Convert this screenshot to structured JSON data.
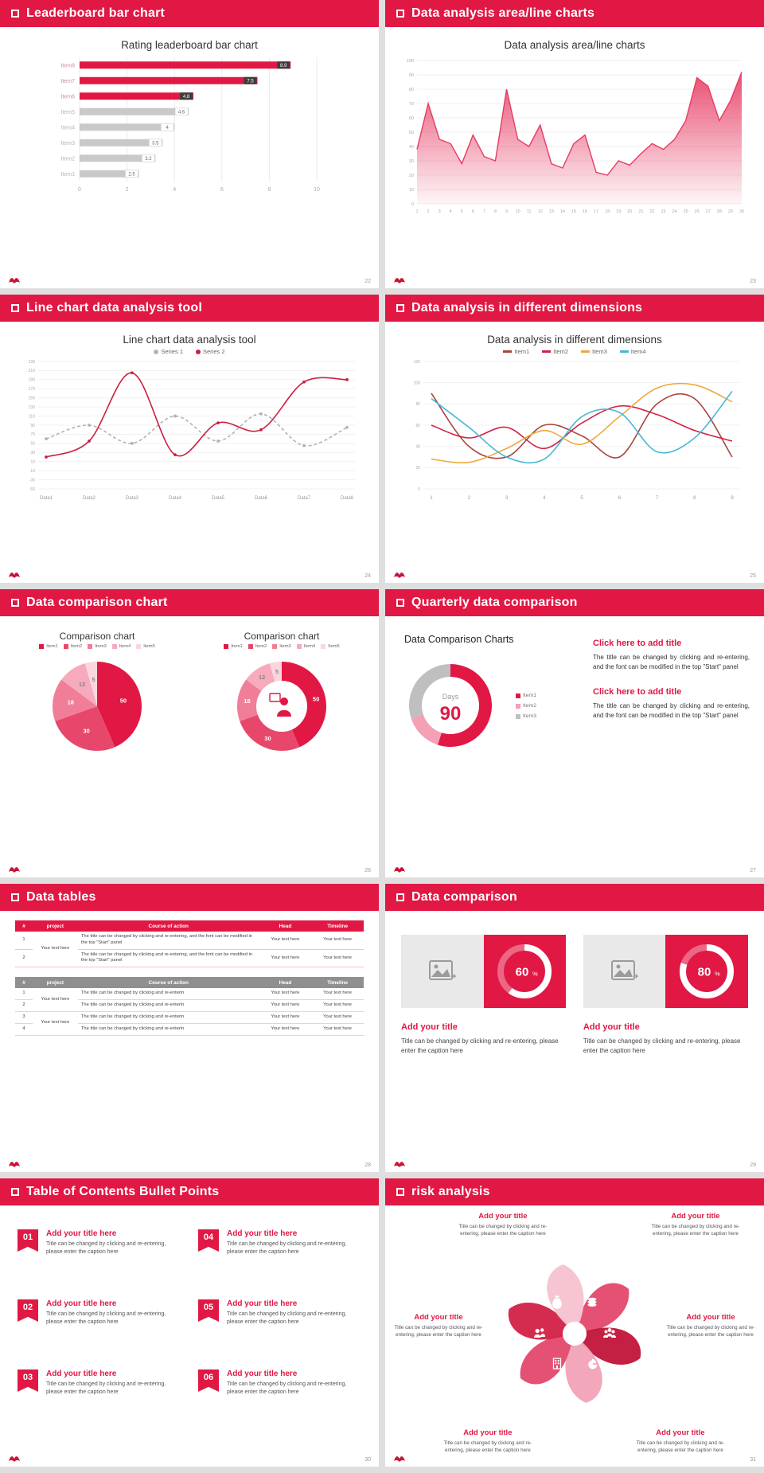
{
  "theme": {
    "accent": "#e11844",
    "accent_dark": "#b5123a",
    "page_bg": "#dfdfdf",
    "slide_bg": "#ffffff",
    "gray_bar": "#c9c9c9",
    "table_gray_header": "#8f8f8f"
  },
  "slides": [
    {
      "header": "Leaderboard bar chart",
      "page": "22",
      "chart": {
        "type": "hbar",
        "title": "Rating leaderboard bar chart",
        "categories": [
          "Item1",
          "Item2",
          "Item3",
          "Item4",
          "Item5",
          "Item6",
          "Item7",
          "Item8"
        ],
        "values": [
          2.5,
          3.2,
          3.5,
          4,
          4.6,
          4.8,
          7.5,
          8.9
        ],
        "highlight_count": 3,
        "xticks": [
          0,
          2,
          4,
          6,
          8,
          10
        ],
        "xlim": [
          0,
          10
        ],
        "bar_color": "#c9c9c9",
        "highlight_color": "#e11844",
        "badge_dark": "#3d3d3d"
      }
    },
    {
      "header": "Data analysis area/line charts",
      "page": "23",
      "chart": {
        "type": "area",
        "title": "Data analysis area/line charts",
        "x_start": 1,
        "values": [
          38,
          70,
          45,
          42,
          28,
          48,
          33,
          30,
          80,
          45,
          40,
          55,
          28,
          25,
          42,
          48,
          22,
          20,
          30,
          27,
          35,
          42,
          38,
          45,
          58,
          88,
          82,
          58,
          72,
          92
        ],
        "ylim": [
          0,
          100
        ],
        "ystep": 10,
        "color": "#e73b63"
      }
    },
    {
      "header": "Line chart data analysis tool",
      "page": "24",
      "chart": {
        "type": "line",
        "title": "Line chart data analysis tool",
        "dots": true,
        "categories": [
          "Data1",
          "Data2",
          "Data3",
          "Data4",
          "Data5",
          "Data6",
          "Data7",
          "Data8"
        ],
        "ylim": [
          -50,
          230
        ],
        "ystep": 20,
        "series": [
          {
            "name": "Series 1",
            "color": "#b3b3b3",
            "dashed": true,
            "values": [
              60,
              90,
              50,
              110,
              55,
              115,
              45,
              85
            ]
          },
          {
            "name": "Series 2",
            "color": "#cc1f41",
            "dashed": false,
            "values": [
              20,
              55,
              205,
              25,
              95,
              80,
              185,
              190
            ]
          }
        ]
      }
    },
    {
      "header": "Data analysis in different dimensions",
      "page": "25",
      "chart": {
        "type": "line",
        "title": "Data analysis in different dimensions",
        "dots": false,
        "categories": [
          "1",
          "2",
          "3",
          "4",
          "5",
          "6",
          "7",
          "8",
          "9"
        ],
        "ylim": [
          0,
          120
        ],
        "ystep": 20,
        "series": [
          {
            "name": "Item1",
            "color": "#a8453e",
            "dashed": false,
            "values": [
              90,
              40,
              30,
              60,
              50,
              30,
              80,
              85,
              30
            ]
          },
          {
            "name": "Item2",
            "color": "#d42045",
            "dashed": false,
            "values": [
              60,
              48,
              58,
              38,
              62,
              78,
              70,
              55,
              45
            ]
          },
          {
            "name": "Item3",
            "color": "#eea83b",
            "dashed": false,
            "values": [
              28,
              25,
              38,
              55,
              42,
              68,
              95,
              98,
              82
            ]
          },
          {
            "name": "Item4",
            "color": "#45b8d6",
            "dashed": false,
            "values": [
              85,
              58,
              30,
              28,
              68,
              72,
              35,
              48,
              92
            ]
          }
        ]
      }
    },
    {
      "header": "Data comparison chart",
      "page": "26",
      "pie": {
        "type": "pie",
        "title": "Comparison chart",
        "labels": [
          "Item1",
          "Item2",
          "Item3",
          "Item4",
          "Item5"
        ],
        "values": [
          50,
          30,
          18,
          12,
          5
        ],
        "colors": [
          "#e11844",
          "#e8476c",
          "#f07e98",
          "#f6aabc",
          "#fbd6de"
        ]
      },
      "donut": {
        "type": "donut",
        "title": "Comparison chart",
        "labels": [
          "Item1",
          "Item2",
          "Item3",
          "Item4",
          "Item5"
        ],
        "values": [
          50,
          30,
          18,
          12,
          5
        ],
        "colors": [
          "#e11844",
          "#e8476c",
          "#f07e98",
          "#f6aabc",
          "#fbd6de"
        ]
      }
    },
    {
      "header": "Quarterly data comparison",
      "page": "27",
      "chart": {
        "type": "gauge",
        "title": "Data Comparison Charts",
        "center_label": "Days",
        "center_value": "90",
        "labels": [
          "Item1",
          "Item2",
          "Item3"
        ],
        "values": [
          55,
          15,
          30
        ],
        "colors": [
          "#e11844",
          "#f4a0b5",
          "#bfbfbf"
        ]
      },
      "blocks": [
        {
          "title": "Click here to add title",
          "body": "The title can be changed by clicking and re-entering, and the font can be modified in the top \"Start\" panel"
        },
        {
          "title": "Click here to add title",
          "body": "The title can be changed by clicking and re-entering, and the font can be modified in the top \"Start\" panel"
        }
      ]
    },
    {
      "header": "Data tables",
      "page": "28",
      "table1": {
        "columns": [
          "#",
          "project",
          "Course of action",
          "Head",
          "Timeline"
        ],
        "project": "Your text here",
        "rows": [
          {
            "num": "1",
            "course": "The title can be changed by clicking and re-entering, and the font can be modified in the top \"Start\" panel",
            "head": "Your text here",
            "timeline": "Your text here"
          },
          {
            "num": "2",
            "course": "The title can be changed by clicking and re-entering, and the font can be modified in the top \"Start\" panel",
            "head": "Your text here",
            "timeline": "Your text here"
          }
        ]
      },
      "table2": {
        "columns": [
          "#",
          "project",
          "Course of action",
          "Head",
          "Timeline"
        ],
        "project_a": "Your text here",
        "project_b": "Your text here",
        "rows": [
          {
            "num": "1",
            "course": "The title can be changed by clicking and re-enterin",
            "head": "Your text here",
            "timeline": "Your text here"
          },
          {
            "num": "2",
            "course": "The title can be changed by clicking and re-enterin",
            "head": "Your text here",
            "timeline": "Your text here"
          },
          {
            "num": "3",
            "course": "The title can be changed by clicking and re-enterin",
            "head": "Your text here",
            "timeline": "Your text here"
          },
          {
            "num": "4",
            "course": "The title can be changed by clicking and re-enterin",
            "head": "Your text here",
            "timeline": "Your text here"
          }
        ]
      }
    },
    {
      "header": "Data comparison",
      "page": "29",
      "cards": [
        {
          "type": "ring",
          "percent": 60,
          "title": "Add your title",
          "caption": "Title can be changed by clicking and re-entering, please enter the caption here"
        },
        {
          "type": "ring",
          "percent": 80,
          "title": "Add your title",
          "caption": "Title can be changed by clicking and re-entering, please enter the caption here"
        }
      ]
    },
    {
      "header": "Table of Contents Bullet Points",
      "page": "30",
      "items": [
        {
          "num": "01",
          "title": "Add your title here",
          "caption": "Title can be changed by clicking and re-entering, please enter the caption here"
        },
        {
          "num": "02",
          "title": "Add your title here",
          "caption": "Title can be changed by clicking and re-entering, please enter the caption here"
        },
        {
          "num": "03",
          "title": "Add your title here",
          "caption": "Title can be changed by clicking and re-entering, please enter the caption here"
        },
        {
          "num": "04",
          "title": "Add your title here",
          "caption": "Title can be changed by clicking and re-entering, please enter the caption here"
        },
        {
          "num": "05",
          "title": "Add your title here",
          "caption": "Title can be changed by clicking and re-entering, please enter the caption here"
        },
        {
          "num": "06",
          "title": "Add your title here",
          "caption": "Title can be changed by clicking and re-entering, please enter the caption here"
        }
      ]
    },
    {
      "header": "risk analysis",
      "page": "31",
      "wheel": {
        "type": "pinwheel",
        "colors": [
          "#e34a6d",
          "#c2173b",
          "#f3a3b8",
          "#e34a6d",
          "#d12348",
          "#f7c3d0"
        ],
        "icons": [
          "money-bag",
          "coins",
          "team",
          "pie-chart",
          "building",
          "people"
        ]
      },
      "items": [
        {
          "title": "Add your title",
          "caption": "Title can be changed by clicking and re-entering, please enter the caption here"
        },
        {
          "title": "Add your title",
          "caption": "Title can be changed by clicking and re-entering, please enter the caption here"
        },
        {
          "title": "Add your title",
          "caption": "Title can be changed by clicking and re-entering, please enter the caption here"
        },
        {
          "title": "Add your title",
          "caption": "Title can be changed by clicking and re-entering, please enter the caption here"
        },
        {
          "title": "Add your title",
          "caption": "Title can be changed by clicking and re-entering, please enter the caption here"
        },
        {
          "title": "Add your title",
          "caption": "Title can be changed by clicking and re-entering, please enter the caption here"
        }
      ]
    }
  ]
}
